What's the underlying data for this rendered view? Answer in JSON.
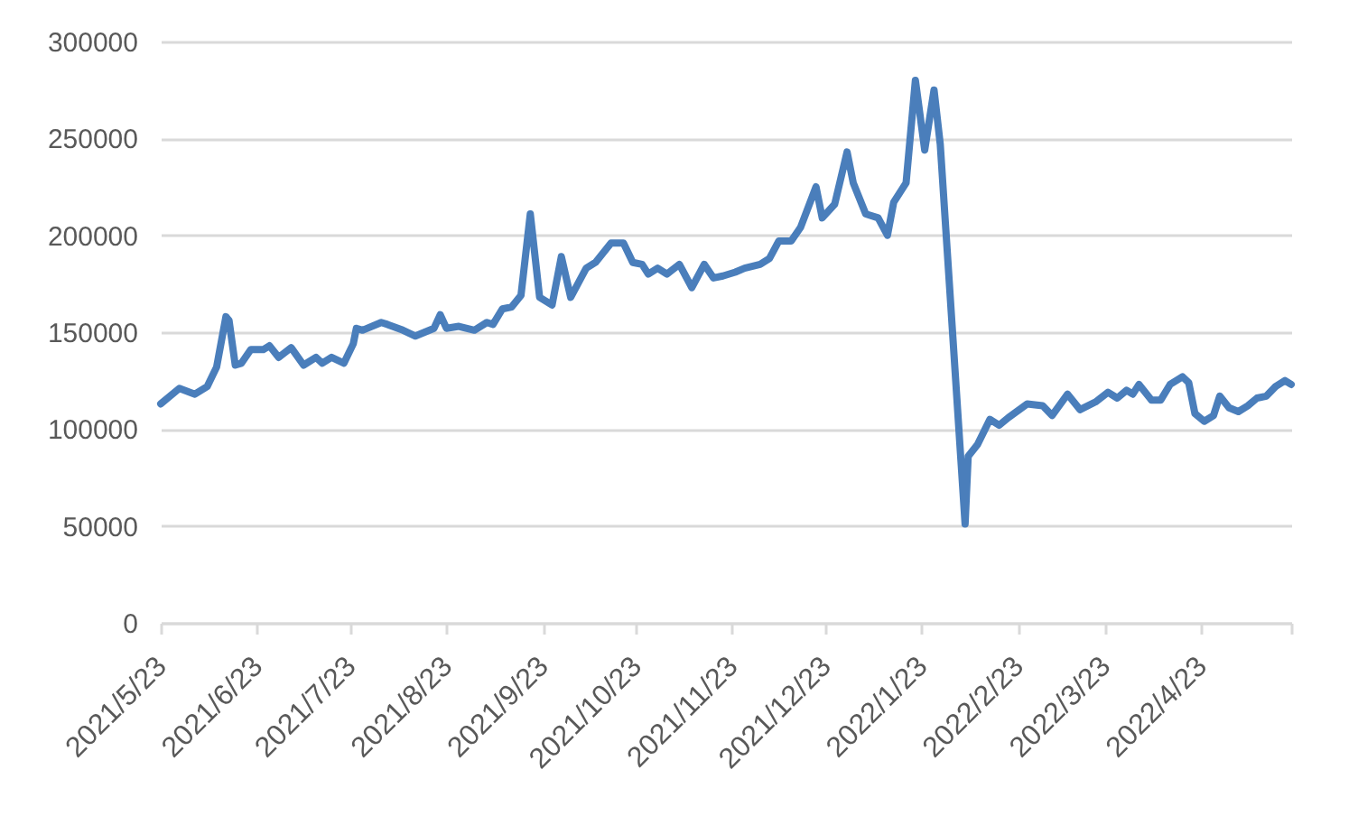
{
  "chart_data": {
    "type": "line",
    "x": [
      "2021-05-23",
      "2021-05-29",
      "2021-06-03",
      "2021-06-07",
      "2021-06-10",
      "2021-06-13",
      "2021-06-14",
      "2021-06-16",
      "2021-06-18",
      "2021-06-21",
      "2021-06-25",
      "2021-06-27",
      "2021-06-30",
      "2021-07-04",
      "2021-07-08",
      "2021-07-12",
      "2021-07-14",
      "2021-07-17",
      "2021-07-21",
      "2021-07-24",
      "2021-07-25",
      "2021-07-27",
      "2021-08-02",
      "2021-08-04",
      "2021-08-09",
      "2021-08-13",
      "2021-08-19",
      "2021-08-21",
      "2021-08-23",
      "2021-08-27",
      "2021-09-01",
      "2021-09-05",
      "2021-09-07",
      "2021-09-10",
      "2021-09-13",
      "2021-09-16",
      "2021-09-19",
      "2021-09-22",
      "2021-09-26",
      "2021-09-29",
      "2021-10-02",
      "2021-10-07",
      "2021-10-10",
      "2021-10-15",
      "2021-10-19",
      "2021-10-22",
      "2021-10-25",
      "2021-10-27",
      "2021-10-30",
      "2021-11-02",
      "2021-11-06",
      "2021-11-10",
      "2021-11-14",
      "2021-11-17",
      "2021-11-20",
      "2021-11-24",
      "2021-11-27",
      "2021-12-02",
      "2021-12-05",
      "2021-12-08",
      "2021-12-12",
      "2021-12-15",
      "2021-12-20",
      "2021-12-22",
      "2021-12-26",
      "2021-12-30",
      "2022-01-01",
      "2022-01-05",
      "2022-01-09",
      "2022-01-12",
      "2022-01-14",
      "2022-01-18",
      "2022-01-21",
      "2022-01-24",
      "2022-01-27",
      "2022-01-29",
      "2022-02-06",
      "2022-02-07",
      "2022-02-10",
      "2022-02-14",
      "2022-02-17",
      "2022-02-20",
      "2022-02-26",
      "2022-03-03",
      "2022-03-06",
      "2022-03-11",
      "2022-03-15",
      "2022-03-20",
      "2022-03-24",
      "2022-03-27",
      "2022-03-30",
      "2022-04-01",
      "2022-04-03",
      "2022-04-07",
      "2022-04-10",
      "2022-04-13",
      "2022-04-17",
      "2022-04-19",
      "2022-04-21",
      "2022-04-24",
      "2022-04-27",
      "2022-04-29",
      "2022-05-02",
      "2022-05-05",
      "2022-05-08",
      "2022-05-11",
      "2022-05-14",
      "2022-05-17",
      "2022-05-20",
      "2022-05-22"
    ],
    "series": [
      {
        "color": "#4a7ebb",
        "values": [
          113000,
          121000,
          118000,
          122000,
          132000,
          158000,
          156000,
          133000,
          134000,
          141000,
          141000,
          143000,
          137000,
          142000,
          133000,
          137000,
          134000,
          137000,
          134000,
          144000,
          152000,
          151000,
          155000,
          154000,
          151000,
          148000,
          152000,
          159000,
          152000,
          153000,
          151000,
          155000,
          154000,
          162000,
          163000,
          169000,
          211000,
          168000,
          164000,
          189000,
          168000,
          183000,
          186000,
          196000,
          196000,
          186000,
          185000,
          180000,
          183000,
          180000,
          185000,
          173000,
          185000,
          178000,
          179000,
          181000,
          183000,
          185000,
          188000,
          197000,
          197000,
          204000,
          225000,
          209000,
          216000,
          243000,
          227000,
          211000,
          209000,
          200000,
          217000,
          227000,
          280000,
          244000,
          275000,
          247000,
          51000,
          86000,
          92000,
          105000,
          102000,
          106000,
          113000,
          112000,
          107000,
          118000,
          110000,
          114000,
          119000,
          116000,
          120000,
          118000,
          123000,
          115000,
          115000,
          123000,
          127000,
          124000,
          108000,
          104000,
          107000,
          117000,
          111000,
          109000,
          112000,
          116000,
          117000,
          122000,
          125000,
          123000
        ]
      }
    ],
    "xlim": [
      "2021-05-23",
      "2022-05-22"
    ],
    "xticks": [
      {
        "value": "2021-05-23",
        "label": "2021/5/23"
      },
      {
        "value": "2021-06-23",
        "label": "2021/6/23"
      },
      {
        "value": "2021-07-23",
        "label": "2021/7/23"
      },
      {
        "value": "2021-08-23",
        "label": "2021/8/23"
      },
      {
        "value": "2021-09-23",
        "label": "2021/9/23"
      },
      {
        "value": "2021-10-23",
        "label": "2021/10/23"
      },
      {
        "value": "2021-11-23",
        "label": "2021/11/23"
      },
      {
        "value": "2021-12-23",
        "label": "2021/12/23"
      },
      {
        "value": "2022-01-23",
        "label": "2022/1/23"
      },
      {
        "value": "2022-02-23",
        "label": "2022/2/23"
      },
      {
        "value": "2022-03-23",
        "label": "2022/3/23"
      },
      {
        "value": "2022-04-23",
        "label": "2022/4/23"
      },
      {
        "value": "2022-05-22",
        "label": null
      }
    ],
    "ylim": [
      0,
      300000
    ],
    "yticks": [
      0,
      50000,
      100000,
      150000,
      200000,
      250000,
      300000
    ],
    "grid": "y"
  }
}
